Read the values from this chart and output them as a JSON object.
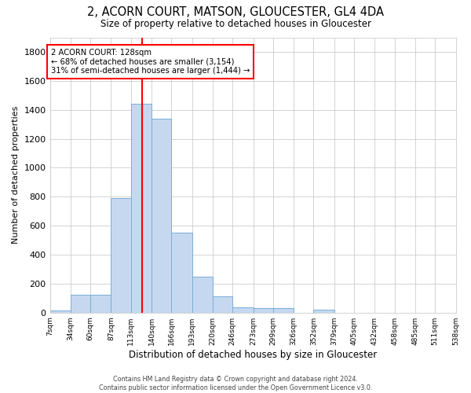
{
  "title": "2, ACORN COURT, MATSON, GLOUCESTER, GL4 4DA",
  "subtitle": "Size of property relative to detached houses in Gloucester",
  "xlabel": "Distribution of detached houses by size in Gloucester",
  "ylabel": "Number of detached properties",
  "bar_color": "#c5d8f0",
  "bar_edge_color": "#7aaed6",
  "annotation_line_color": "red",
  "property_size": 128,
  "annotation_text": "2 ACORN COURT: 128sqm\n← 68% of detached houses are smaller (3,154)\n31% of semi-detached houses are larger (1,444) →",
  "footer_line1": "Contains HM Land Registry data © Crown copyright and database right 2024.",
  "footer_line2": "Contains public sector information licensed under the Open Government Licence v3.0.",
  "bin_edges": [
    7,
    34,
    60,
    87,
    113,
    140,
    166,
    193,
    220,
    246,
    273,
    299,
    326,
    352,
    379,
    405,
    432,
    458,
    485,
    511,
    538
  ],
  "bin_values": [
    15,
    125,
    125,
    790,
    1440,
    1340,
    550,
    250,
    110,
    35,
    30,
    30,
    0,
    20,
    0,
    0,
    0,
    0,
    0,
    0
  ],
  "ylim": [
    0,
    1900
  ],
  "yticks": [
    0,
    200,
    400,
    600,
    800,
    1000,
    1200,
    1400,
    1600,
    1800
  ],
  "background_color": "#ffffff",
  "grid_color": "#cccccc"
}
